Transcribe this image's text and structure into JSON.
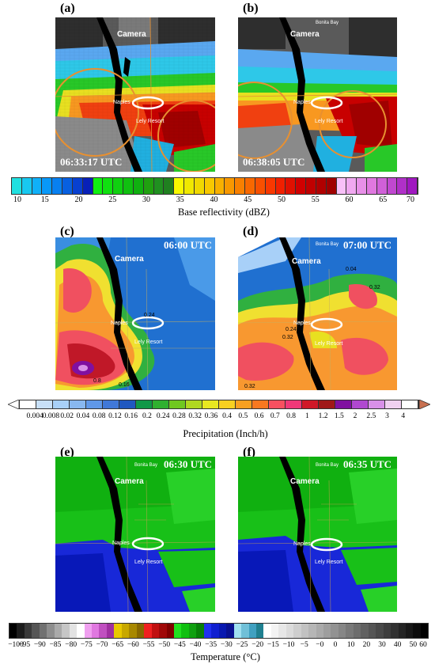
{
  "panels": {
    "a": {
      "label": "(a)",
      "timestamp": "06:33:17 UTC"
    },
    "b": {
      "label": "(b)",
      "timestamp": "06:38:05 UTC"
    },
    "c": {
      "label": "(c)",
      "timestamp": "06:00 UTC",
      "contour_labels": [
        "0.24",
        "0.16",
        "0.8"
      ]
    },
    "d": {
      "label": "(d)",
      "timestamp": "07:00 UTC",
      "contour_labels": [
        "0.04",
        "0.32",
        "0.24",
        "0.32",
        "0.32"
      ]
    },
    "e": {
      "label": "(e)",
      "timestamp": "06:30 UTC"
    },
    "f": {
      "label": "(f)",
      "timestamp": "06:35 UTC"
    }
  },
  "map_labels": {
    "camera": "Camera",
    "bonita_bay": "Bonita Bay",
    "naples": "Naples",
    "lely_resort": "Lely Resort"
  },
  "colorbars": {
    "reflectivity": {
      "title": "Base reflectivity (dBZ)",
      "ticks": [
        "10",
        "15",
        "20",
        "25",
        "30",
        "35",
        "40",
        "45",
        "50",
        "55",
        "60",
        "65",
        "70"
      ],
      "colors": [
        "#20e0e0",
        "#18c8f0",
        "#10b0f8",
        "#0898f8",
        "#0880f0",
        "#0860e0",
        "#0840d0",
        "#0820b8",
        "#10f010",
        "#10e010",
        "#10d010",
        "#10c010",
        "#10b010",
        "#20a010",
        "#209020",
        "#208020",
        "#f8f800",
        "#f0e800",
        "#f0d800",
        "#f8c800",
        "#f8b000",
        "#f89800",
        "#f88000",
        "#f86800",
        "#f85000",
        "#f83800",
        "#f02000",
        "#e01000",
        "#d00000",
        "#c00000",
        "#b00000",
        "#a00000",
        "#f8c0f8",
        "#f0a8f0",
        "#e890e8",
        "#e078e0",
        "#d060d8",
        "#c048d0",
        "#b030c8",
        "#a018c0"
      ]
    },
    "precipitation": {
      "title": "Precipitation (Inch/h)",
      "ticks": [
        "0.004",
        "0.008",
        "0.02",
        "0.04",
        "0.08",
        "0.12",
        "0.16",
        "0.2",
        "0.24",
        "0.28",
        "0.32",
        "0.36",
        "0.4",
        "0.5",
        "0.6",
        "0.7",
        "0.8",
        "1",
        "1.2",
        "1.5",
        "2",
        "2.5",
        "3",
        "4"
      ],
      "colors": [
        "#ffffff",
        "#c8e0f8",
        "#a8d0f8",
        "#88b8f0",
        "#6098e8",
        "#4078d8",
        "#2058c0",
        "#109848",
        "#30b030",
        "#70c820",
        "#b0d820",
        "#e8e820",
        "#f8d020",
        "#f8a020",
        "#f87820",
        "#f85060",
        "#f03878",
        "#d01828",
        "#a01818",
        "#8010a0",
        "#b048d0",
        "#d890e8",
        "#f0d0f0",
        "#ffffff"
      ],
      "end_colors": {
        "left": "#ffffff",
        "right": "#c87050"
      }
    },
    "temperature": {
      "title": "Temperature (°C)",
      "ticks": [
        "−100",
        "−95",
        "−90",
        "−85",
        "−80",
        "−75",
        "−70",
        "−65",
        "−60",
        "−55",
        "−50",
        "−45",
        "−40",
        "−35",
        "−30",
        "−25",
        "−20",
        "−15",
        "−10",
        "−5",
        "−0",
        "0",
        "10",
        "20",
        "30",
        "40",
        "50",
        "60"
      ]
    }
  }
}
